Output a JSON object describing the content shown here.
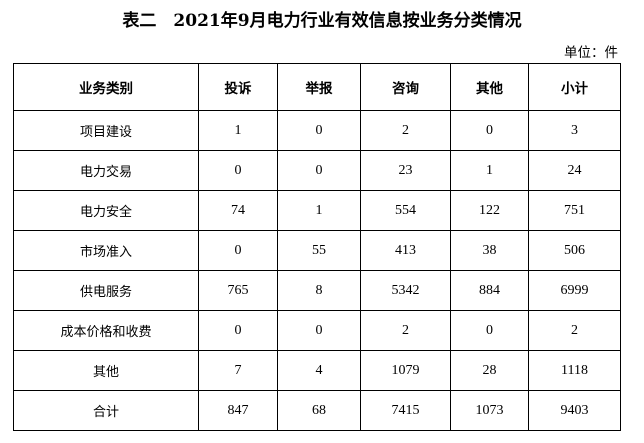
{
  "title": "表二　2021年9月电力行业有效信息按业务分类情况",
  "unit": "单位：件",
  "table": {
    "headers": [
      "业务类别",
      "投诉",
      "举报",
      "咨询",
      "其他",
      "小计"
    ],
    "rows": [
      [
        "项目建设",
        "1",
        "0",
        "2",
        "0",
        "3"
      ],
      [
        "电力交易",
        "0",
        "0",
        "23",
        "1",
        "24"
      ],
      [
        "电力安全",
        "74",
        "1",
        "554",
        "122",
        "751"
      ],
      [
        "市场准入",
        "0",
        "55",
        "413",
        "38",
        "506"
      ],
      [
        "供电服务",
        "765",
        "8",
        "5342",
        "884",
        "6999"
      ],
      [
        "成本价格和收费",
        "0",
        "0",
        "2",
        "0",
        "2"
      ],
      [
        "其他",
        "7",
        "4",
        "1079",
        "28",
        "1118"
      ],
      [
        "合计",
        "847",
        "68",
        "7415",
        "1073",
        "9403"
      ]
    ]
  }
}
